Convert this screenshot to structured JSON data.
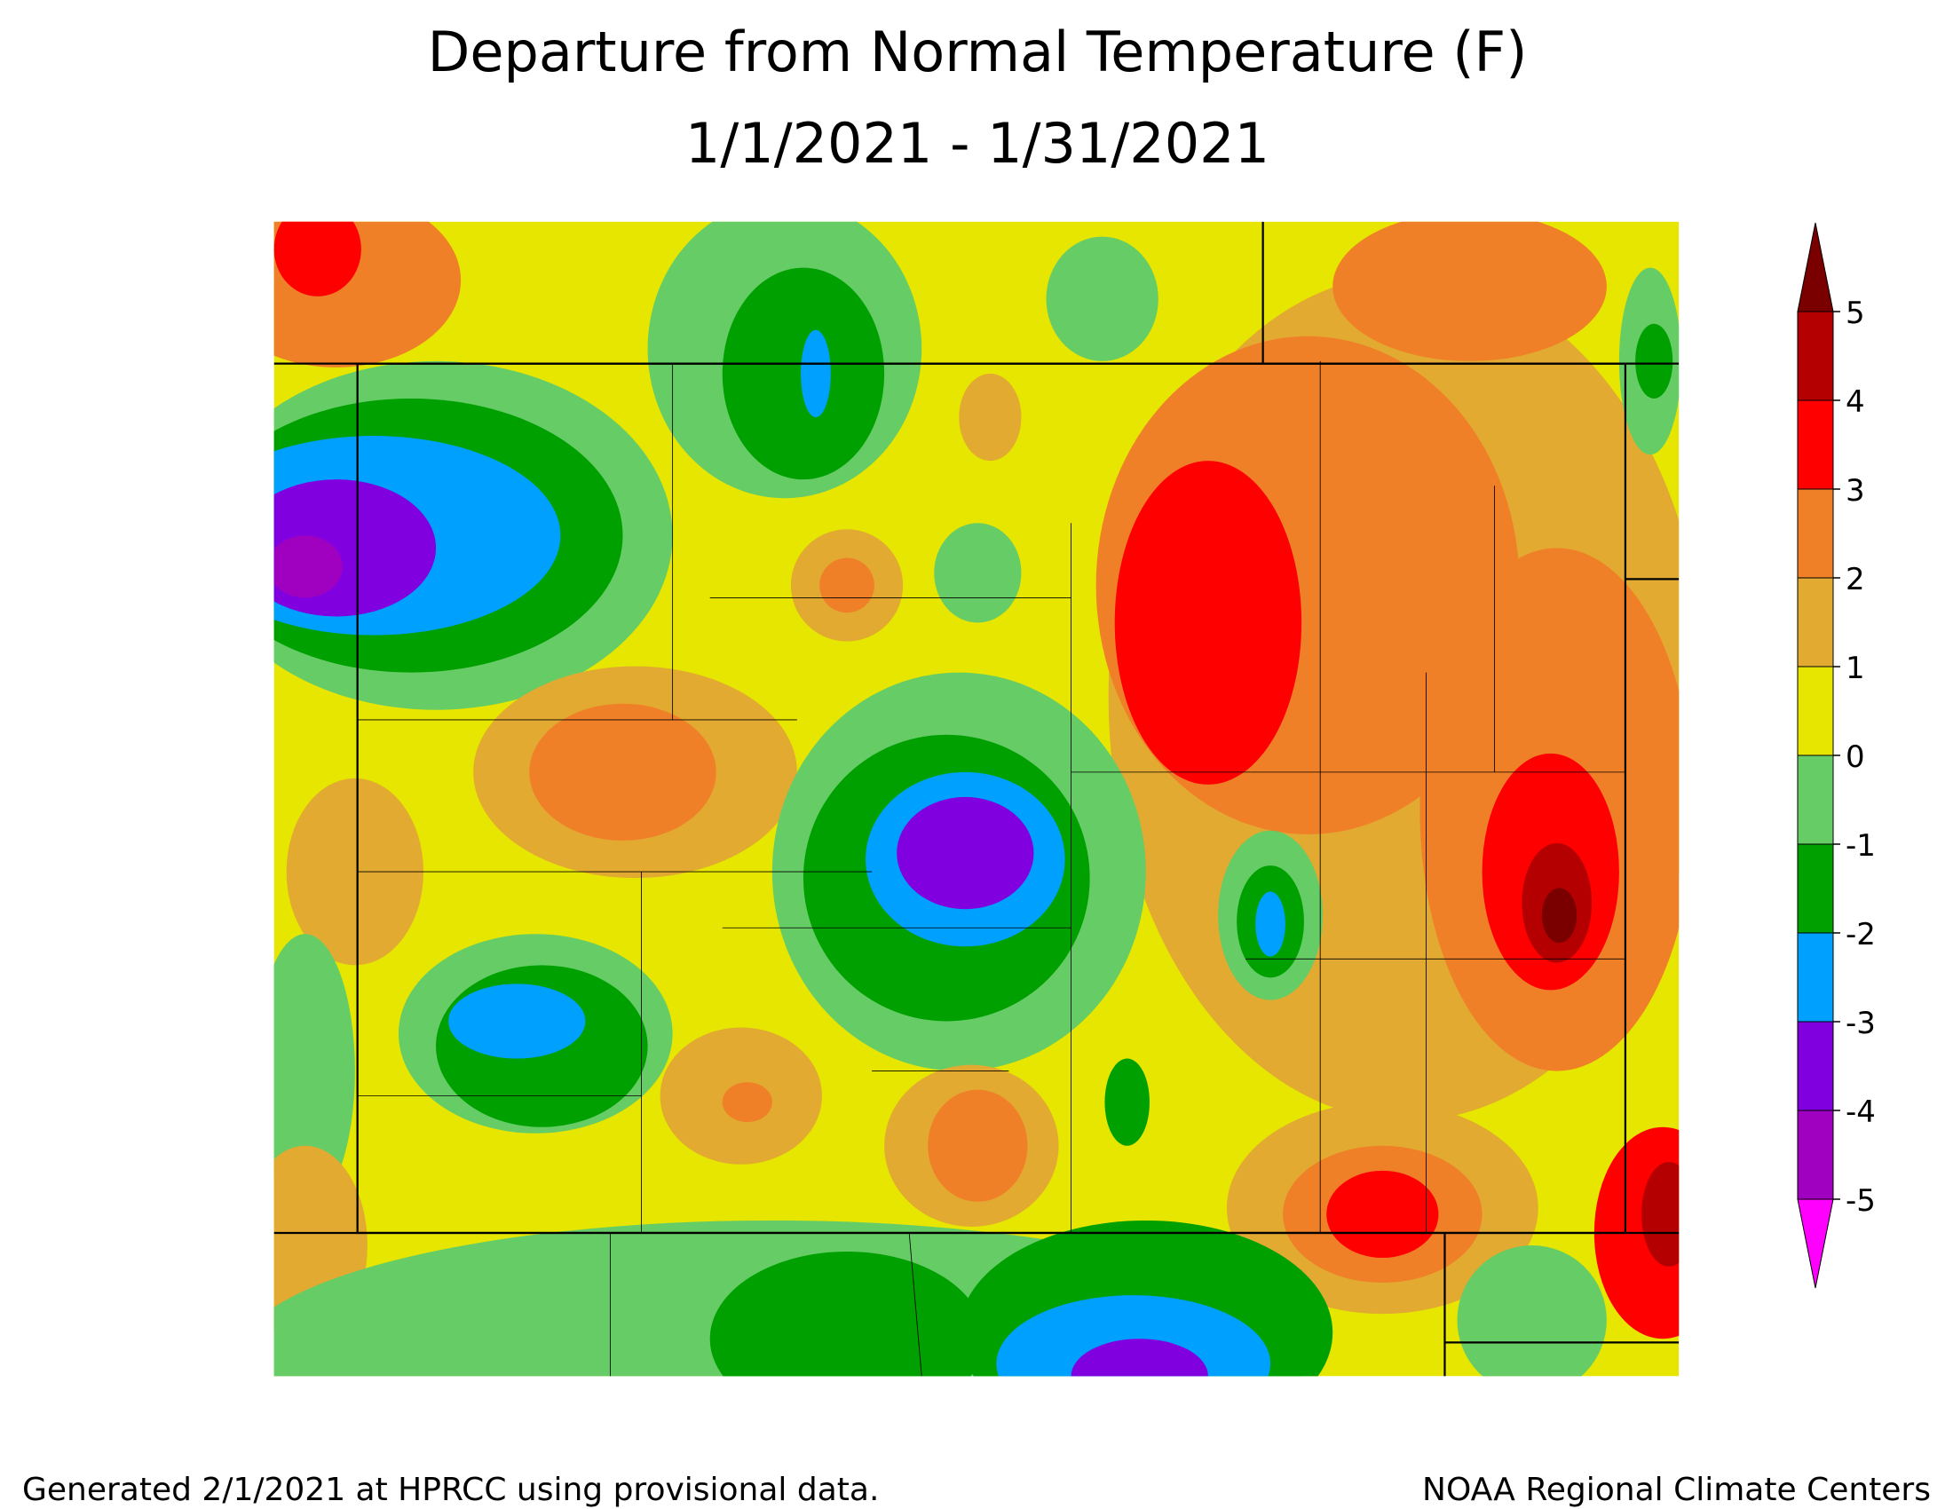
{
  "title": [
    "Departure from Normal Temperature (F)",
    "1/1/2021 - 1/31/2021"
  ],
  "legend": {
    "levels": [
      5,
      4,
      3,
      2,
      1,
      0,
      -1,
      -2,
      -3,
      -4,
      -5
    ],
    "colors": [
      "#7a0000",
      "#b40000",
      "#ff0000",
      "#f08028",
      "#e2aa30",
      "#e6e600",
      "#66cc66",
      "#00a000",
      "#00a0ff",
      "#8000e0",
      "#a000c0",
      "#ff00ff"
    ]
  },
  "footer": {
    "left": "Generated 2/1/2021 at HPRCC using provisional data.",
    "right": "NOAA Regional Climate Centers"
  }
}
